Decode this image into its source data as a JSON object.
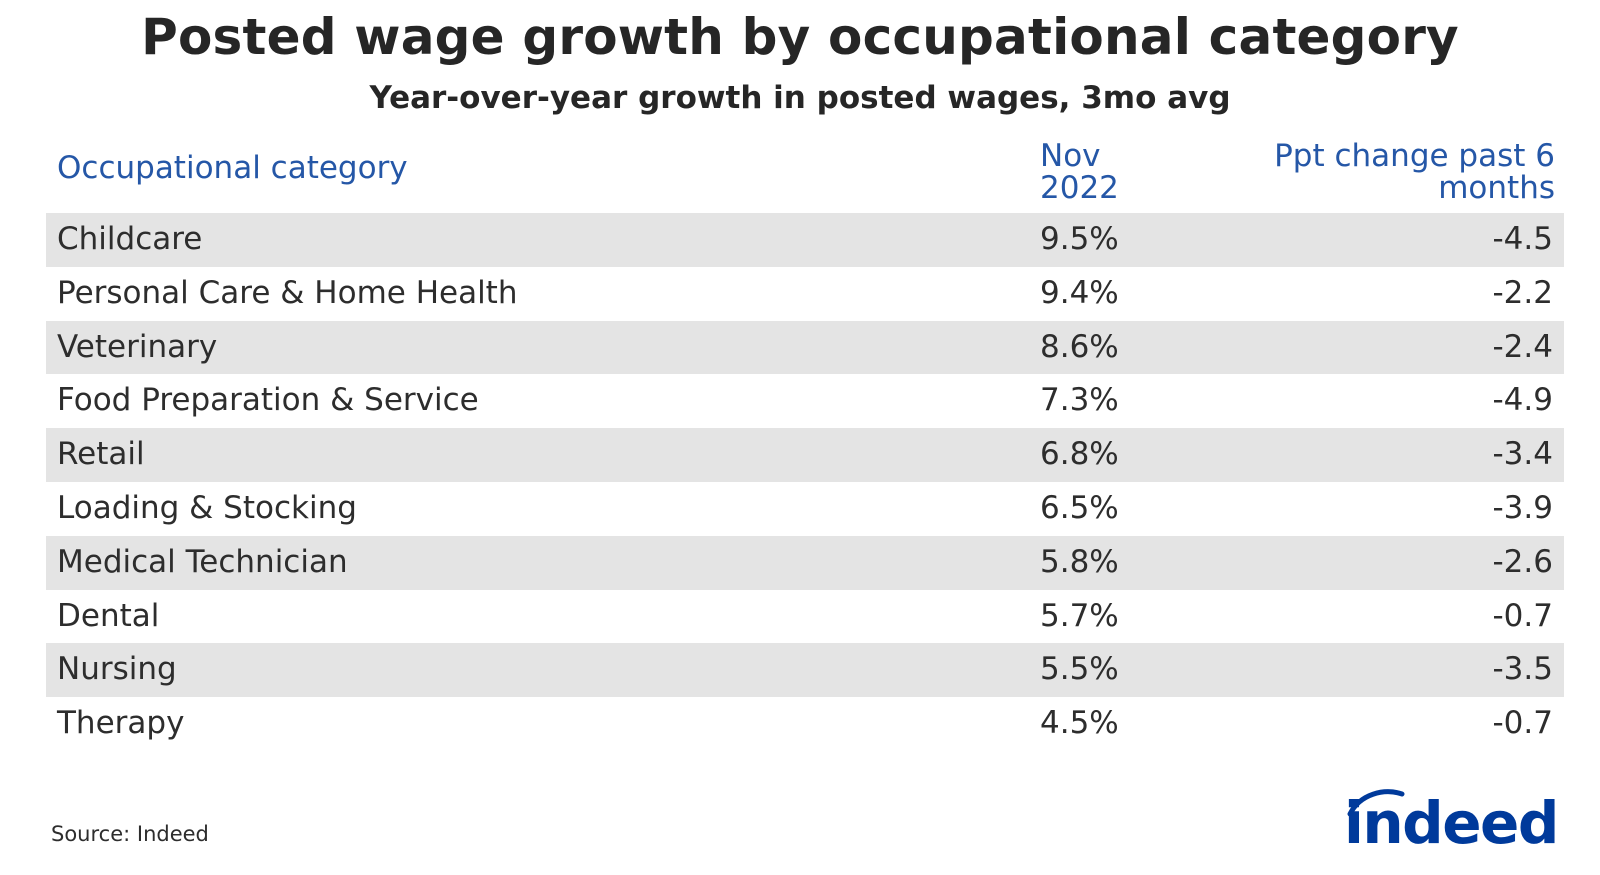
{
  "title": "Posted wage growth by occupational category",
  "subtitle": "Year-over-year growth in posted wages, 3mo avg",
  "source": "Source: Indeed",
  "logo_text": "indeed",
  "colors": {
    "header_text": "#2557a7",
    "shaded_row": "#e4e4e4",
    "logo": "#003a9b"
  },
  "chart_data": {
    "type": "table",
    "columns": [
      "Occupational category",
      "Nov 2022",
      "Ppt change past 6 months"
    ],
    "rows": [
      {
        "category": "Childcare",
        "nov_2022": "9.5%",
        "ppt_change": "-4.5"
      },
      {
        "category": "Personal Care & Home Health",
        "nov_2022": "9.4%",
        "ppt_change": "-2.2"
      },
      {
        "category": "Veterinary",
        "nov_2022": "8.6%",
        "ppt_change": "-2.4"
      },
      {
        "category": "Food Preparation & Service",
        "nov_2022": "7.3%",
        "ppt_change": "-4.9"
      },
      {
        "category": "Retail",
        "nov_2022": "6.8%",
        "ppt_change": "-3.4"
      },
      {
        "category": "Loading & Stocking",
        "nov_2022": "6.5%",
        "ppt_change": "-3.9"
      },
      {
        "category": "Medical Technician",
        "nov_2022": "5.8%",
        "ppt_change": "-2.6"
      },
      {
        "category": "Dental",
        "nov_2022": "5.7%",
        "ppt_change": "-0.7"
      },
      {
        "category": "Nursing",
        "nov_2022": "5.5%",
        "ppt_change": "-3.5"
      },
      {
        "category": "Therapy",
        "nov_2022": "4.5%",
        "ppt_change": "-0.7"
      }
    ]
  }
}
